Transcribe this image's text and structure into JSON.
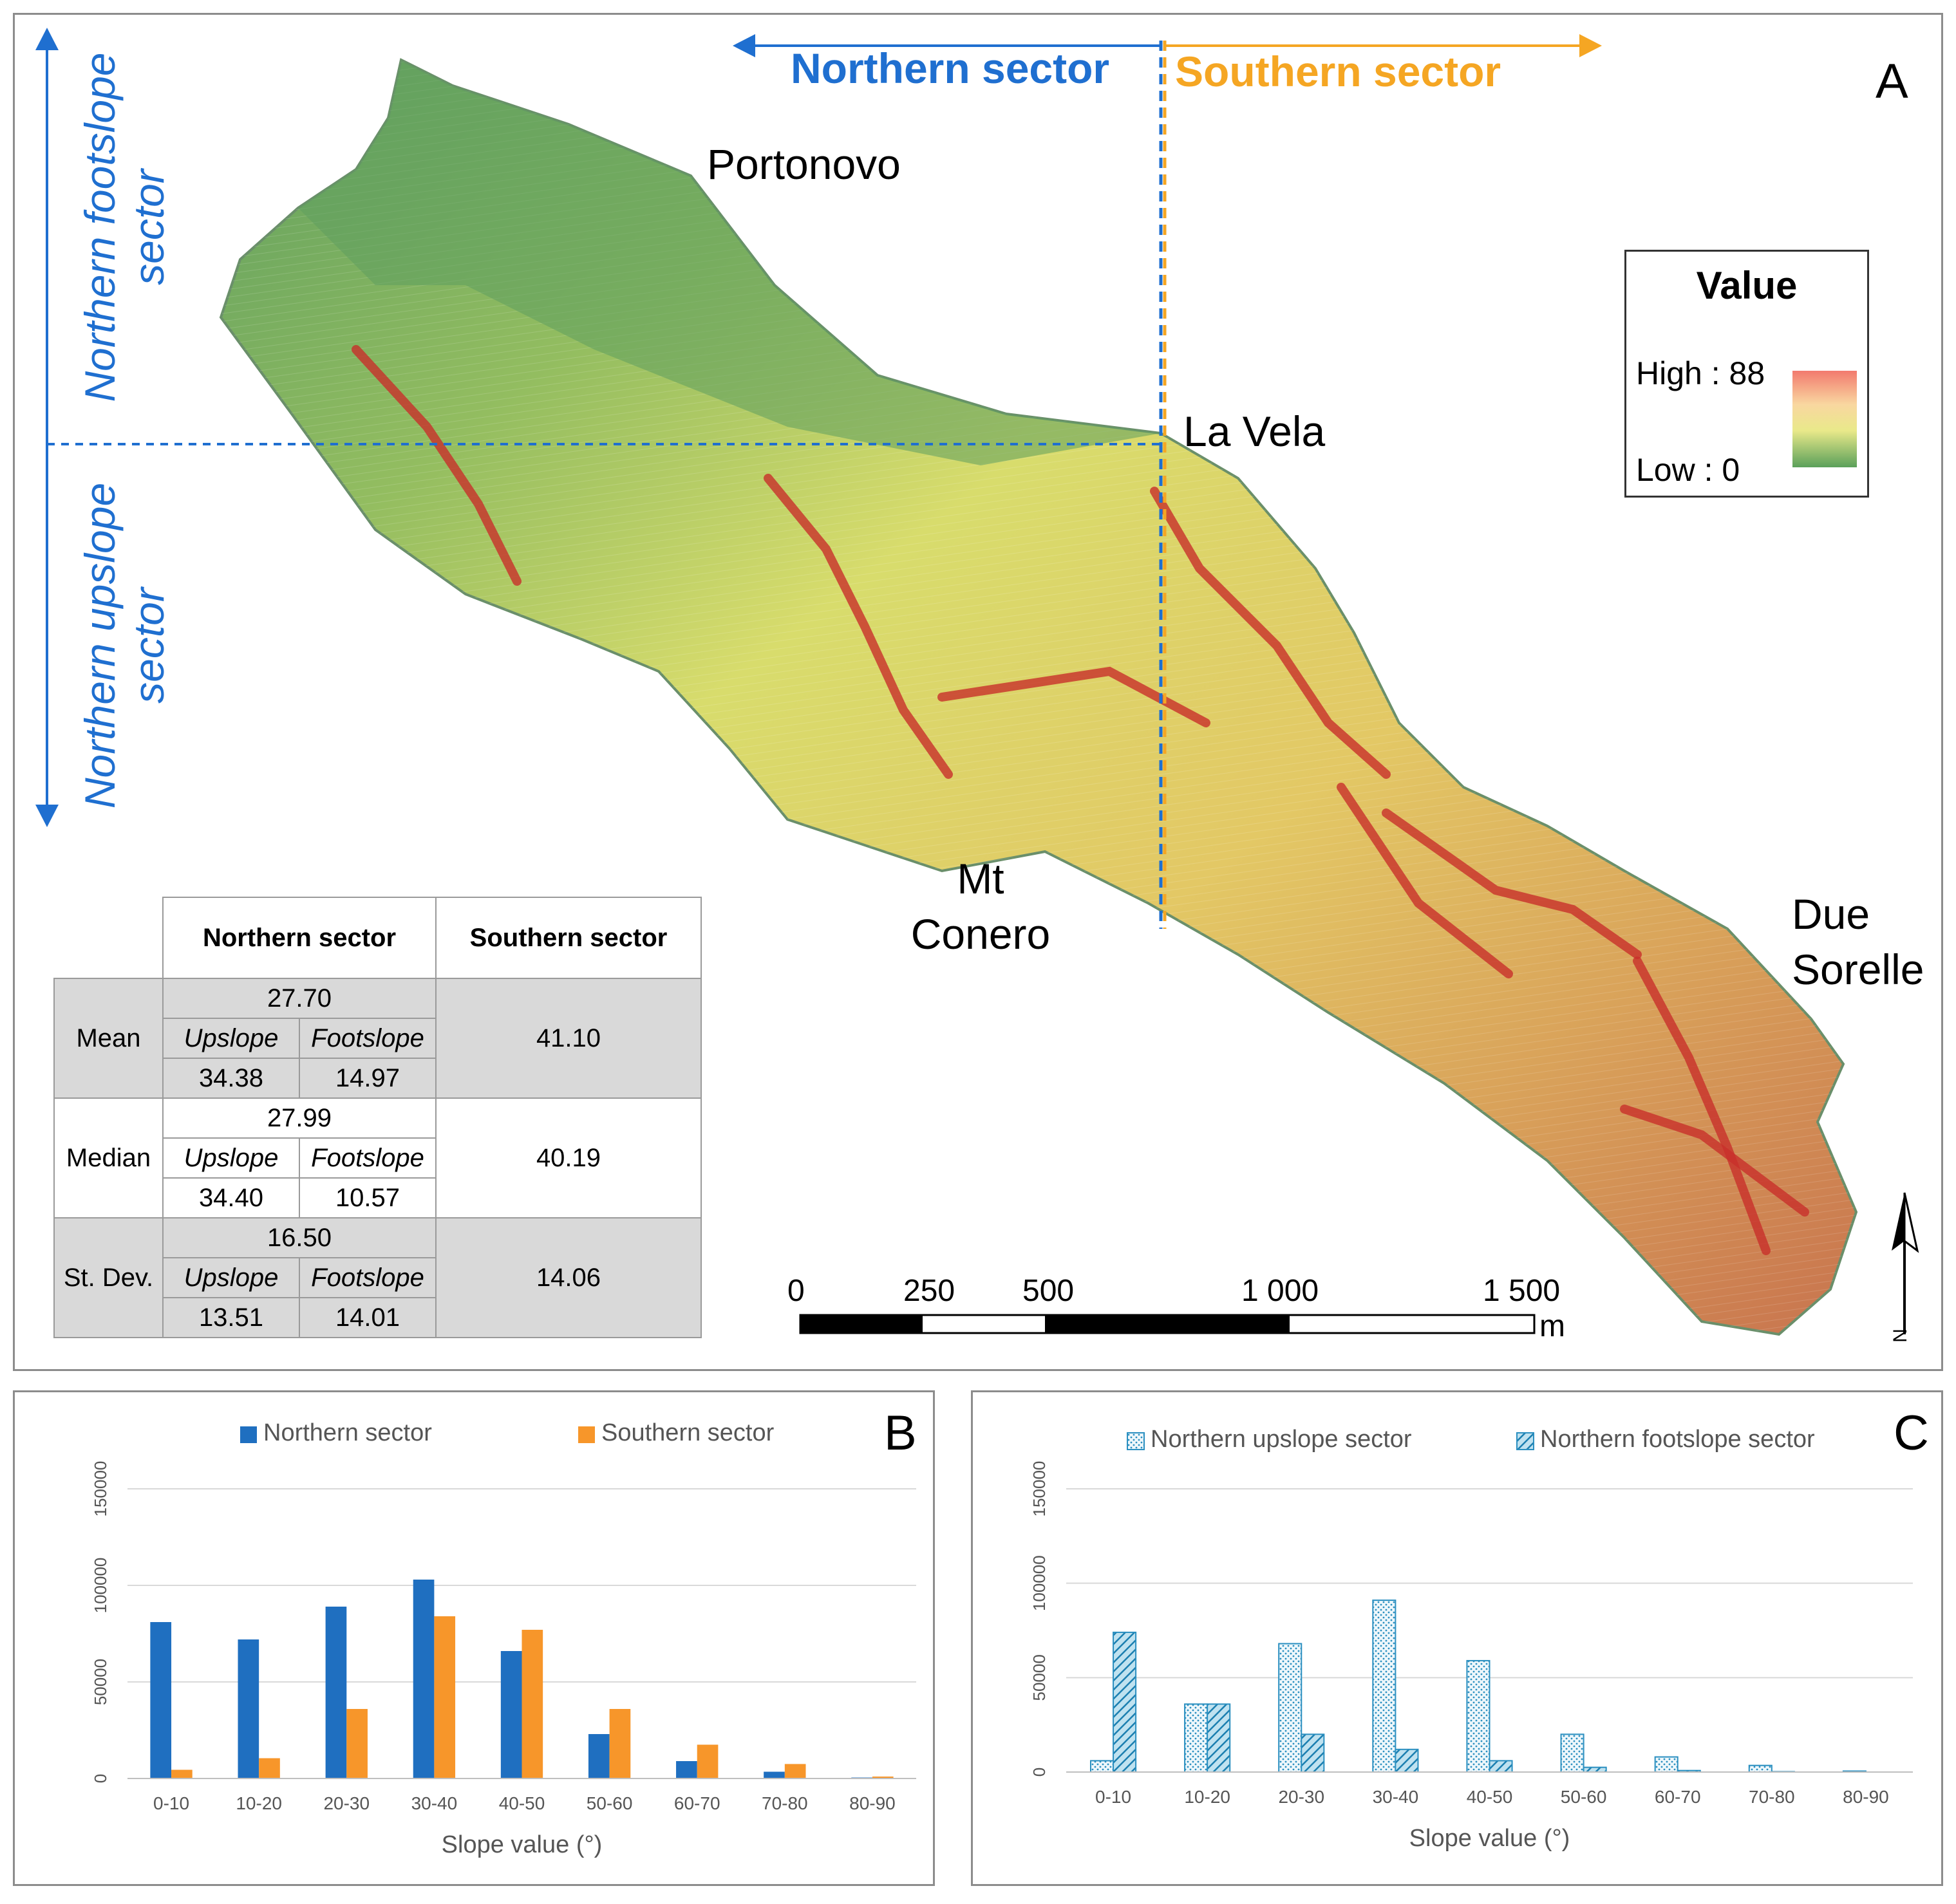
{
  "panel_a": {
    "letter": "A",
    "northern_sector": "Northern sector",
    "southern_sector": "Southern sector",
    "northern_footslope_line1": "Northern footslope",
    "northern_footslope_line2": "sector",
    "northern_upslope_line1": "Northern upslope",
    "northern_upslope_line2": "sector",
    "places": {
      "portonovo": "Portonovo",
      "la_vela": "La Vela",
      "mt_line1": "Mt",
      "mt_line2": "Conero",
      "due_line1": "Due",
      "due_line2": "Sorelle"
    },
    "legend": {
      "title": "Value",
      "high": "High : 88",
      "low": "Low : 0"
    },
    "colors": {
      "northern": "#1f6fd0",
      "southern": "#f5a623"
    },
    "scalebar": {
      "ticks": [
        "0",
        "250",
        "500",
        "1 000",
        "1 500"
      ],
      "unit": "m"
    },
    "north_arrow": "N",
    "table": {
      "header": {
        "northern": "Northern sector",
        "southern": "Southern sector"
      },
      "sub_upslope": "Upslope",
      "sub_footslope": "Footslope",
      "rows": [
        {
          "label": "Mean",
          "northern": "27.70",
          "upslope": "34.38",
          "footslope": "14.97",
          "southern": "41.10"
        },
        {
          "label": "Median",
          "northern": "27.99",
          "upslope": "34.40",
          "footslope": "10.57",
          "southern": "40.19"
        },
        {
          "label": "St. Dev.",
          "northern": "16.50",
          "upslope": "13.51",
          "footslope": "14.01",
          "southern": "14.06"
        }
      ]
    }
  },
  "chart_data": [
    {
      "panel": "B",
      "type": "bar",
      "xlabel": "Slope value (°)",
      "ylabel": "",
      "ylim": [
        0,
        150000
      ],
      "yticks": [
        "0",
        "50000",
        "100000",
        "150000"
      ],
      "categories": [
        "0-10",
        "10-20",
        "20-30",
        "30-40",
        "40-50",
        "50-60",
        "60-70",
        "70-80",
        "80-90"
      ],
      "legend_position": "top",
      "series": [
        {
          "name": "Northern sector",
          "color": "#1f6fc0",
          "pattern": "solid",
          "values": [
            81000,
            72000,
            89000,
            103000,
            66000,
            23000,
            9000,
            3500,
            500
          ]
        },
        {
          "name": "Southern sector",
          "color": "#f7962a",
          "pattern": "solid",
          "values": [
            4500,
            10500,
            36000,
            84000,
            77000,
            36000,
            17500,
            7500,
            1000
          ]
        }
      ]
    },
    {
      "panel": "C",
      "type": "bar",
      "xlabel": "Slope value (°)",
      "ylabel": "",
      "ylim": [
        0,
        150000
      ],
      "yticks": [
        "0",
        "50000",
        "100000",
        "150000"
      ],
      "categories": [
        "0-10",
        "10-20",
        "20-30",
        "30-40",
        "40-50",
        "50-60",
        "60-70",
        "70-80",
        "80-90"
      ],
      "legend_position": "top",
      "series": [
        {
          "name": "Northern upslope sector",
          "color": "#2a8fc0",
          "pattern": "dotted",
          "values": [
            6000,
            36000,
            68000,
            91000,
            59000,
            20000,
            8000,
            3500,
            500
          ]
        },
        {
          "name": "Northern footslope sector",
          "color": "#2a8fc0",
          "pattern": "hatched",
          "values": [
            74000,
            36000,
            20000,
            12000,
            6000,
            2500,
            800,
            200,
            0
          ]
        }
      ]
    }
  ]
}
